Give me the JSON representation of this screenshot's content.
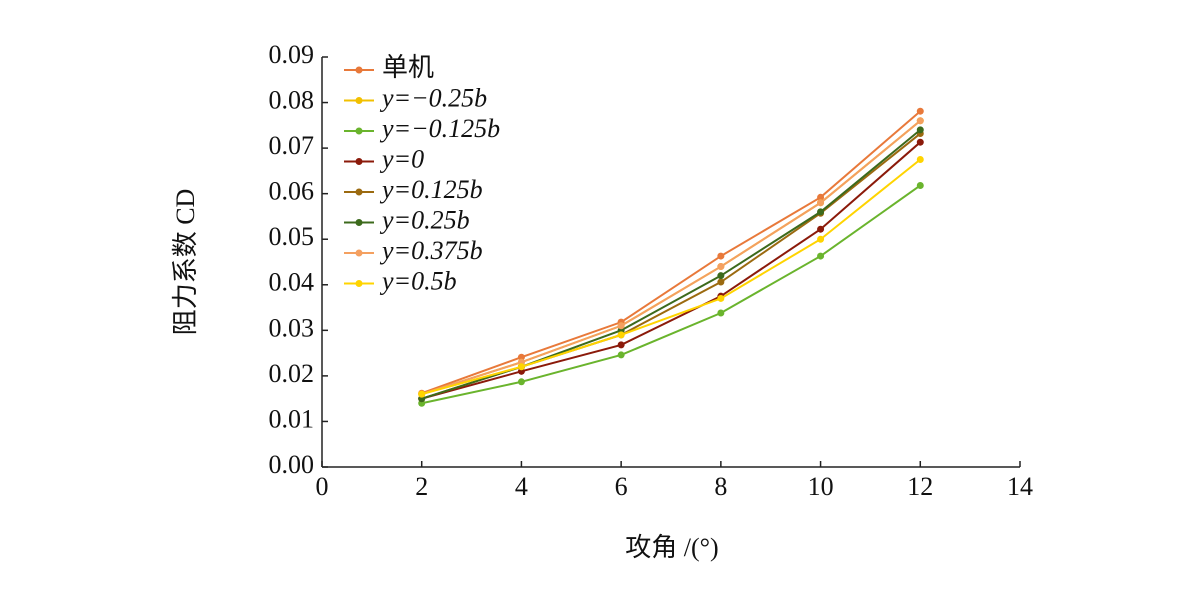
{
  "chart_data": {
    "type": "line",
    "y_label": "阻力系数 CD",
    "x_label": "攻角 /(°)",
    "x": [
      2,
      4,
      6,
      8,
      10,
      12
    ],
    "xlim": [
      0,
      14
    ],
    "xticks": [
      0,
      2,
      4,
      6,
      8,
      10,
      12,
      14
    ],
    "ylim": [
      0,
      0.09
    ],
    "yticks": [
      {
        "value": 0,
        "label": "0.00"
      },
      0.01,
      0.02,
      0.03,
      0.04,
      0.05,
      0.06,
      0.07,
      0.08,
      0.09
    ],
    "legend": "upper left",
    "series": [
      {
        "name": "单机",
        "color": "#e8793a",
        "values": [
          0.0162,
          0.0241,
          0.0318,
          0.0463,
          0.0592,
          0.0781
        ]
      },
      {
        "name": "y=−0.25b",
        "color": "#f2c000",
        "values": [
          0.016,
          0.023,
          0.031,
          0.044,
          0.058,
          0.076
        ]
      },
      {
        "name": "y=−0.125b",
        "color": "#6ab42d",
        "values": [
          0.014,
          0.0187,
          0.0246,
          0.0338,
          0.0463,
          0.0618
        ]
      },
      {
        "name": "y=0",
        "color": "#8b1a0a",
        "values": [
          0.015,
          0.021,
          0.0268,
          0.0375,
          0.0522,
          0.0713
        ]
      },
      {
        "name": "y=0.125b",
        "color": "#9b6a10",
        "values": [
          0.015,
          0.022,
          0.029,
          0.0406,
          0.0557,
          0.0732
        ]
      },
      {
        "name": "y=0.25b",
        "color": "#3c6a1c",
        "values": [
          0.015,
          0.022,
          0.03,
          0.042,
          0.056,
          0.074
        ]
      },
      {
        "name": "y=0.375b",
        "color": "#f4a060",
        "values": [
          0.016,
          0.023,
          0.031,
          0.044,
          0.058,
          0.076
        ]
      },
      {
        "name": "y=0.5b",
        "color": "#ffd400",
        "values": [
          0.016,
          0.022,
          0.029,
          0.037,
          0.05,
          0.0675
        ]
      }
    ]
  }
}
